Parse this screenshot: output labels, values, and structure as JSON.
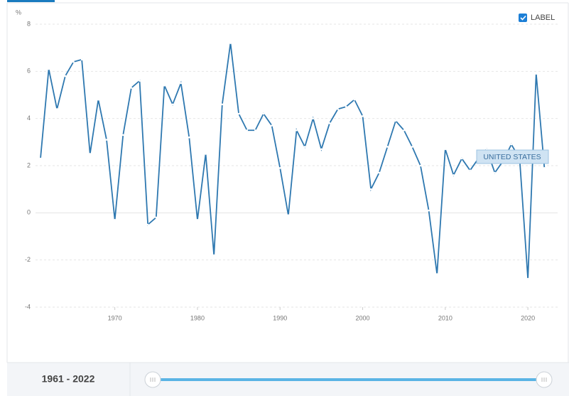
{
  "chart_data": {
    "type": "line",
    "y_label": "%",
    "legend_label": "LABEL",
    "x": [
      1961,
      1962,
      1963,
      1964,
      1965,
      1966,
      1967,
      1968,
      1969,
      1970,
      1971,
      1972,
      1973,
      1974,
      1975,
      1976,
      1977,
      1978,
      1979,
      1980,
      1981,
      1982,
      1983,
      1984,
      1985,
      1986,
      1987,
      1988,
      1989,
      1990,
      1991,
      1992,
      1993,
      1994,
      1995,
      1996,
      1997,
      1998,
      1999,
      2000,
      2001,
      2002,
      2003,
      2004,
      2005,
      2006,
      2007,
      2008,
      2009,
      2010,
      2011,
      2012,
      2013,
      2014,
      2015,
      2016,
      2017,
      2018,
      2019,
      2020,
      2021,
      2022
    ],
    "series": [
      {
        "name": "UNITED STATES",
        "color": "#2e78b0",
        "values": [
          2.3,
          6.1,
          4.4,
          5.8,
          6.4,
          6.5,
          2.5,
          4.8,
          3.1,
          -0.3,
          3.3,
          5.3,
          5.6,
          -0.5,
          -0.2,
          5.4,
          4.6,
          5.5,
          3.2,
          -0.3,
          2.5,
          -1.8,
          4.6,
          7.2,
          4.2,
          3.5,
          3.5,
          4.2,
          3.7,
          1.9,
          -0.1,
          3.5,
          2.8,
          4.0,
          2.7,
          3.8,
          4.4,
          4.5,
          4.8,
          4.1,
          1.0,
          1.7,
          2.8,
          3.9,
          3.5,
          2.8,
          2.0,
          0.1,
          -2.6,
          2.7,
          1.6,
          2.3,
          1.8,
          2.3,
          2.7,
          1.7,
          2.2,
          2.9,
          2.3,
          -2.8,
          5.9,
          1.9
        ]
      }
    ],
    "xlim": [
      1960.4,
      2023.6
    ],
    "xticks": [
      1970,
      1980,
      1990,
      2000,
      2010,
      2020
    ],
    "ylim": [
      -4,
      8
    ],
    "yticks": [
      -4,
      -2,
      0,
      2,
      4,
      6,
      8
    ],
    "grid": true
  },
  "controls": {
    "range_label": "1961 - 2022"
  }
}
